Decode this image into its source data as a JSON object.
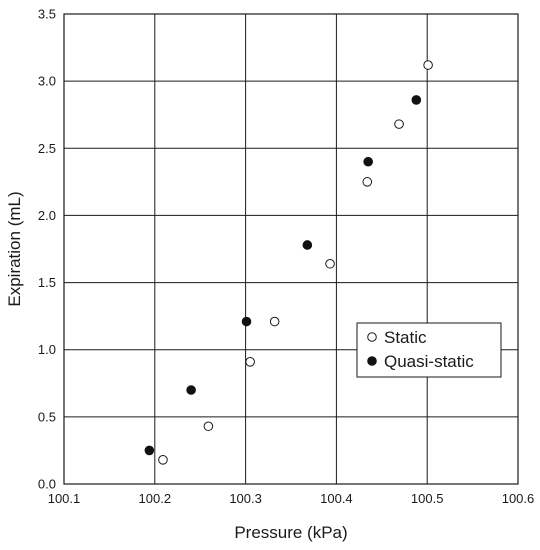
{
  "chart_data": {
    "type": "scatter",
    "xlabel": "Pressure (kPa)",
    "ylabel": "Expiration (mL)",
    "xlim": [
      100.1,
      100.6
    ],
    "ylim": [
      0.0,
      3.5
    ],
    "x_ticks": [
      "100.1",
      "100.2",
      "100.3",
      "100.4",
      "100.5",
      "100.6"
    ],
    "y_ticks": [
      "0.0",
      "0.5",
      "1.0",
      "1.5",
      "2.0",
      "2.5",
      "3.0",
      "3.5"
    ],
    "grid": true,
    "legend_position": "right-middle",
    "series": [
      {
        "name": "Static",
        "marker": "open-circle",
        "points": [
          {
            "x": 100.209,
            "y": 0.18
          },
          {
            "x": 100.259,
            "y": 0.43
          },
          {
            "x": 100.305,
            "y": 0.91
          },
          {
            "x": 100.332,
            "y": 1.21
          },
          {
            "x": 100.393,
            "y": 1.64
          },
          {
            "x": 100.434,
            "y": 2.25
          },
          {
            "x": 100.469,
            "y": 2.68
          },
          {
            "x": 100.501,
            "y": 3.12
          }
        ]
      },
      {
        "name": "Quasi-static",
        "marker": "filled-circle",
        "points": [
          {
            "x": 100.194,
            "y": 0.25
          },
          {
            "x": 100.24,
            "y": 0.7
          },
          {
            "x": 100.301,
            "y": 1.21
          },
          {
            "x": 100.368,
            "y": 1.78
          },
          {
            "x": 100.435,
            "y": 2.4
          },
          {
            "x": 100.488,
            "y": 2.86
          }
        ]
      }
    ]
  }
}
